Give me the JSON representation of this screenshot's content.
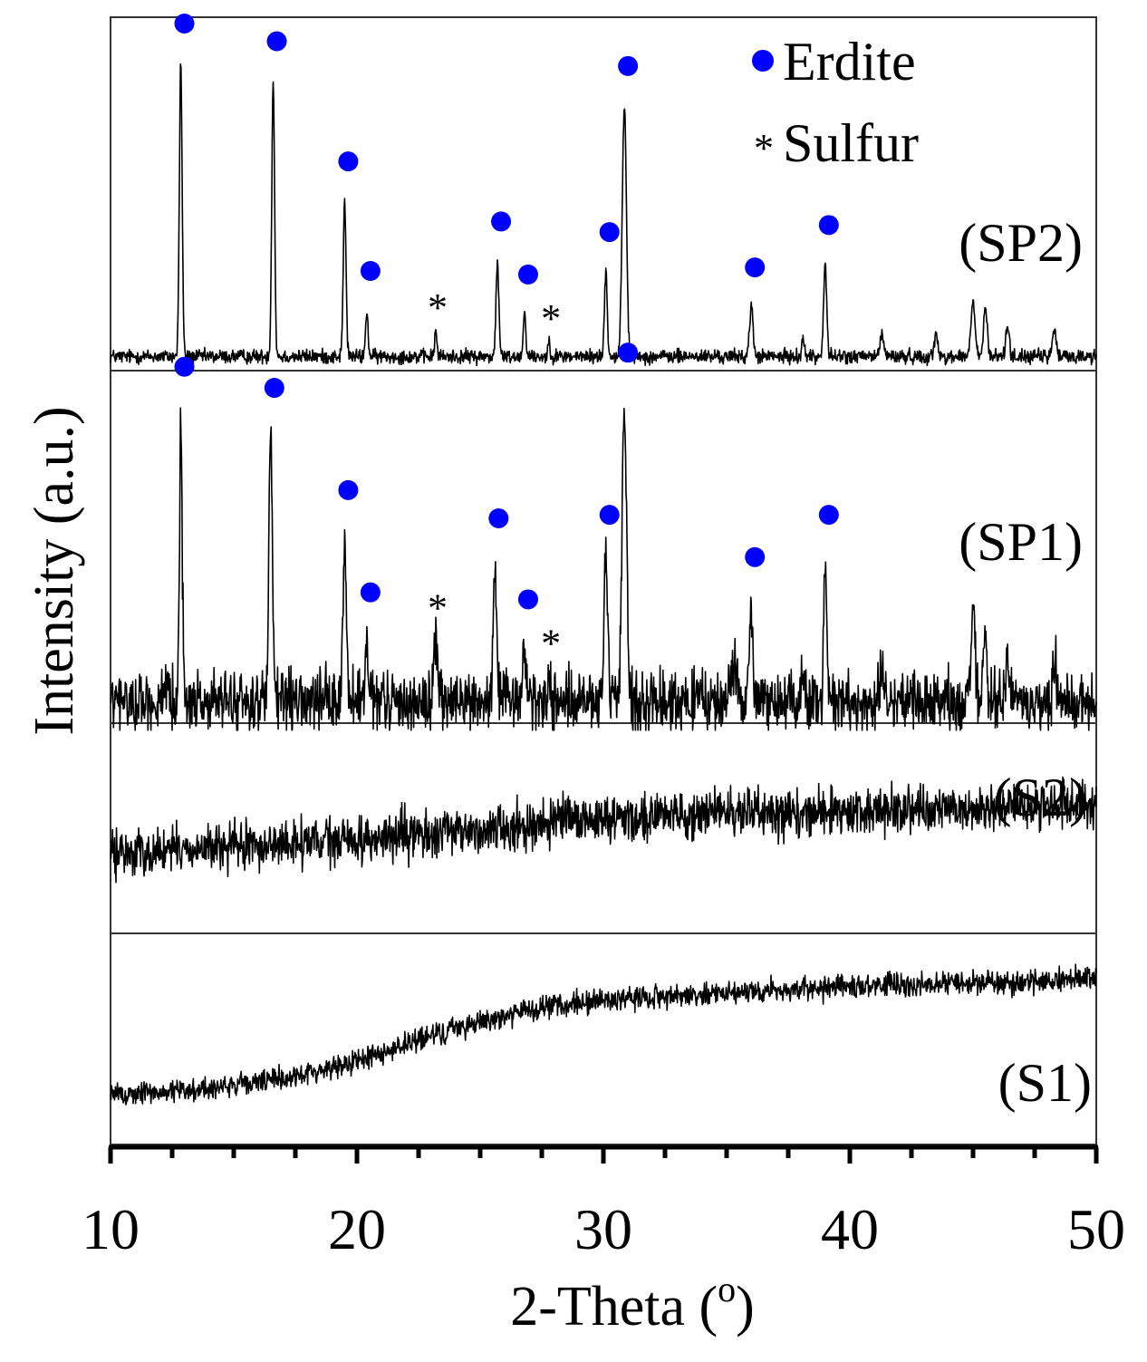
{
  "chart_data": {
    "type": "line",
    "title": "",
    "xlabel": "2-Theta (o)",
    "xlabel_main": "2-Theta (",
    "xlabel_sup": "o",
    "xlabel_close": ")",
    "ylabel": "Intensity (a.u.)",
    "xlim": [
      10,
      50
    ],
    "xticks": [
      10,
      20,
      30,
      40,
      50
    ],
    "legend": {
      "position": "top-right",
      "entries": [
        {
          "label": "Erdite",
          "marker": "circle",
          "color": "#0000ff"
        },
        {
          "label": "Sulfur",
          "marker": "asterisk",
          "color": "#000000"
        }
      ]
    },
    "series": [
      {
        "name": "(SP2)",
        "stack_order": 1,
        "baseline": 0.04,
        "slope": 0,
        "noise": 0.02,
        "peaks": [
          [
            12.85,
            0.83,
            0.08
          ],
          [
            16.6,
            0.78,
            0.08
          ],
          [
            19.5,
            0.44,
            0.08
          ],
          [
            20.4,
            0.13,
            0.07
          ],
          [
            23.2,
            0.08,
            0.06
          ],
          [
            25.7,
            0.27,
            0.08
          ],
          [
            26.8,
            0.12,
            0.08
          ],
          [
            27.8,
            0.05,
            0.06
          ],
          [
            30.1,
            0.24,
            0.08
          ],
          [
            30.85,
            0.71,
            0.12
          ],
          [
            36.0,
            0.14,
            0.1
          ],
          [
            38.1,
            0.05,
            0.08
          ],
          [
            39.0,
            0.26,
            0.09
          ],
          [
            41.3,
            0.07,
            0.1
          ],
          [
            43.5,
            0.06,
            0.1
          ],
          [
            45.0,
            0.15,
            0.12
          ],
          [
            45.5,
            0.14,
            0.1
          ],
          [
            46.4,
            0.09,
            0.1
          ],
          [
            48.3,
            0.08,
            0.1
          ]
        ],
        "erdite_peaks": [
          12.85,
          16.6,
          19.5,
          20.4,
          25.7,
          26.8,
          30.1,
          30.85,
          36.0,
          39.0
        ],
        "sulfur_peaks": [
          23.2,
          27.8
        ]
      },
      {
        "name": "(SP1)",
        "stack_order": 2,
        "baseline": 0.06,
        "slope": 0,
        "noise": 0.085,
        "peaks": [
          [
            12.85,
            0.8,
            0.08
          ],
          [
            16.5,
            0.74,
            0.1
          ],
          [
            19.5,
            0.45,
            0.1
          ],
          [
            20.4,
            0.16,
            0.08
          ],
          [
            23.2,
            0.17,
            0.12
          ],
          [
            25.6,
            0.37,
            0.1
          ],
          [
            26.8,
            0.14,
            0.12
          ],
          [
            27.8,
            0.07,
            0.08
          ],
          [
            30.1,
            0.38,
            0.1
          ],
          [
            30.85,
            0.84,
            0.13
          ],
          [
            35.3,
            0.1,
            0.2
          ],
          [
            36.0,
            0.26,
            0.1
          ],
          [
            38.1,
            0.08,
            0.1
          ],
          [
            39.0,
            0.38,
            0.1
          ],
          [
            41.3,
            0.06,
            0.12
          ],
          [
            45.0,
            0.23,
            0.14
          ],
          [
            45.5,
            0.22,
            0.1
          ],
          [
            46.4,
            0.13,
            0.1
          ],
          [
            48.3,
            0.12,
            0.1
          ]
        ],
        "erdite_peaks": [
          12.85,
          16.5,
          19.5,
          20.4,
          25.6,
          26.8,
          30.1,
          30.85,
          36.0,
          39.0
        ],
        "sulfur_peaks": [
          23.2,
          27.8
        ]
      },
      {
        "name": "(S2)",
        "stack_order": 3,
        "baseline": 0.38,
        "slope": 0.006,
        "hump": [
          32,
          0.05,
          8
        ],
        "noise": 0.11,
        "peaks": [],
        "erdite_peaks": [],
        "sulfur_peaks": []
      },
      {
        "name": "(S1)",
        "stack_order": 4,
        "baseline": 0.23,
        "sigmoid": [
          0.38,
          22,
          6
        ],
        "slope2": 0.0045,
        "noise": 0.055,
        "peaks": [],
        "erdite_peaks": [],
        "sulfur_peaks": []
      }
    ]
  },
  "colors": {
    "erdite_marker": "#0000ff",
    "trace": "#000000"
  },
  "icons": {
    "erdite": "filled-circle-icon",
    "sulfur": "asterisk-icon"
  },
  "sulfur_symbol": "*"
}
